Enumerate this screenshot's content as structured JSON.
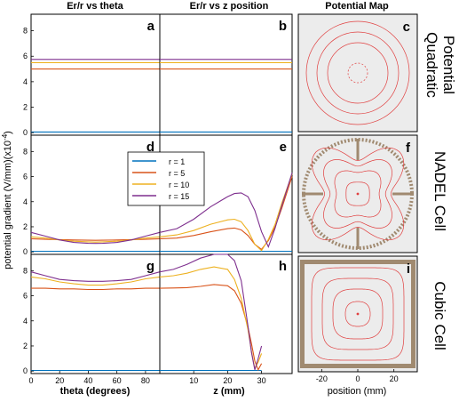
{
  "figure": {
    "ylabel": "potential gradient (V/mm)(x10",
    "ylabel_exp": "-4",
    "ylabel_tail": ")",
    "col_titles": [
      "Er/r vs theta",
      "Er/r vs z position",
      "Potential Map"
    ],
    "xlabel_theta": "theta (degrees)",
    "xlabel_z": "z (mm)",
    "xlabel_map": "position (mm)",
    "row_labels": [
      [
        "Quadratic",
        "Potential"
      ],
      [
        "NADEL Cell"
      ],
      [
        "Cubic Cell"
      ]
    ],
    "panel_letters": [
      "a",
      "b",
      "c",
      "d",
      "e",
      "f",
      "g",
      "h",
      "i"
    ],
    "colors": {
      "r1": "#0072bd",
      "r5": "#d95319",
      "r10": "#edb120",
      "r15": "#7e2f8e",
      "map_contour": "#e04040",
      "map_bg": "#ececec",
      "electrode": "#a08a70"
    },
    "legend": [
      "r = 1",
      "r = 5",
      "r = 10",
      "r = 15"
    ]
  },
  "chart_data": {
    "type": "line",
    "theta_axis": {
      "label": "theta (degrees)",
      "xlim": [
        0,
        90
      ],
      "ticks": [
        "0",
        "20",
        "40",
        "60",
        "80"
      ]
    },
    "z_axis": {
      "label": "z (mm)",
      "xlim": [
        0,
        39
      ],
      "ticks": [
        "0",
        "10",
        "20",
        "30"
      ]
    },
    "y_axis": {
      "ylim": [
        -0.2,
        9.3
      ],
      "ticks": [
        "0",
        "2",
        "4",
        "6",
        "8"
      ]
    },
    "map_axis": {
      "label": "position (mm)",
      "ticks": [
        "-20",
        "0",
        "20"
      ]
    },
    "rows": [
      {
        "name": "Quadratic Potential",
        "theta": {
          "x": [
            0,
            90
          ],
          "series": [
            {
              "name": "r = 1",
              "values": [
                0.05,
                0.05
              ]
            },
            {
              "name": "r = 5",
              "values": [
                5.0,
                5.0
              ]
            },
            {
              "name": "r = 10",
              "values": [
                5.5,
                5.5
              ]
            },
            {
              "name": "r = 15",
              "values": [
                5.75,
                5.75
              ]
            }
          ]
        },
        "z": {
          "x": [
            0,
            39
          ],
          "series": [
            {
              "name": "r = 1",
              "values": [
                0.05,
                0.05
              ]
            },
            {
              "name": "r = 5",
              "values": [
                5.0,
                5.0
              ]
            },
            {
              "name": "r = 10",
              "values": [
                5.5,
                5.5
              ]
            },
            {
              "name": "r = 15",
              "values": [
                5.75,
                5.75
              ]
            }
          ]
        }
      },
      {
        "name": "NADEL Cell",
        "theta": {
          "x": [
            0,
            10,
            20,
            30,
            40,
            45,
            50,
            60,
            70,
            80,
            90
          ],
          "series": [
            {
              "name": "r = 1",
              "values": [
                0.05,
                0.05,
                0.05,
                0.05,
                0.05,
                0.05,
                0.05,
                0.05,
                0.05,
                0.05,
                0.05
              ]
            },
            {
              "name": "r = 5",
              "values": [
                1.05,
                1.0,
                0.98,
                0.95,
                0.93,
                0.92,
                0.93,
                0.95,
                0.98,
                1.0,
                1.05
              ]
            },
            {
              "name": "r = 10",
              "values": [
                1.2,
                1.1,
                0.95,
                0.85,
                0.8,
                0.78,
                0.8,
                0.85,
                0.95,
                1.1,
                1.2
              ]
            },
            {
              "name": "r = 15",
              "values": [
                1.55,
                1.25,
                0.95,
                0.75,
                0.68,
                0.67,
                0.68,
                0.75,
                0.95,
                1.25,
                1.55
              ]
            }
          ]
        },
        "z": {
          "x": [
            0,
            5,
            10,
            15,
            20,
            22,
            24,
            26,
            28,
            30,
            32,
            34,
            36,
            39
          ],
          "series": [
            {
              "name": "r = 1",
              "values": [
                0.05,
                0.05,
                0.05,
                0.05,
                0.05,
                0.05,
                0.05,
                0.05,
                0.05,
                0.05,
                0.05,
                0.05,
                0.05,
                0.05
              ]
            },
            {
              "name": "r = 5",
              "values": [
                1.05,
                1.1,
                1.3,
                1.6,
                1.85,
                1.9,
                1.75,
                1.3,
                0.6,
                0.2,
                0.9,
                2.0,
                3.5,
                6.0
              ]
            },
            {
              "name": "r = 10",
              "values": [
                1.2,
                1.35,
                1.7,
                2.2,
                2.55,
                2.6,
                2.4,
                1.7,
                0.6,
                0.1,
                1.0,
                2.2,
                3.9,
                6.2
              ]
            },
            {
              "name": "r = 15",
              "values": [
                1.55,
                1.85,
                2.6,
                3.6,
                4.4,
                4.65,
                4.7,
                4.4,
                3.3,
                1.6,
                0.4,
                1.9,
                3.7,
                6.3
              ]
            }
          ]
        }
      },
      {
        "name": "Cubic Cell",
        "theta": {
          "x": [
            0,
            10,
            20,
            30,
            40,
            45,
            50,
            60,
            70,
            80,
            90
          ],
          "series": [
            {
              "name": "r = 1",
              "values": [
                0.05,
                0.05,
                0.05,
                0.05,
                0.05,
                0.05,
                0.05,
                0.05,
                0.05,
                0.05,
                0.05
              ]
            },
            {
              "name": "r = 5",
              "values": [
                6.6,
                6.6,
                6.55,
                6.55,
                6.5,
                6.5,
                6.5,
                6.55,
                6.55,
                6.6,
                6.6
              ]
            },
            {
              "name": "r = 10",
              "values": [
                7.5,
                7.35,
                7.1,
                6.95,
                6.85,
                6.85,
                6.85,
                6.95,
                7.1,
                7.35,
                7.5
              ]
            },
            {
              "name": "r = 15",
              "values": [
                7.9,
                7.6,
                7.3,
                7.2,
                7.15,
                7.15,
                7.15,
                7.2,
                7.3,
                7.6,
                7.9
              ]
            }
          ]
        },
        "z": {
          "x": [
            0,
            4,
            8,
            12,
            16,
            20,
            22,
            24,
            26,
            27,
            28,
            29,
            30
          ],
          "series": [
            {
              "name": "r = 1",
              "values": [
                0.05,
                0.05,
                0.05,
                0.05,
                0.05,
                0.05,
                0.05,
                0.05,
                0.05,
                0.05,
                0.05,
                0.05,
                0.05
              ]
            },
            {
              "name": "r = 5",
              "values": [
                6.6,
                6.62,
                6.65,
                6.75,
                6.9,
                6.8,
                6.4,
                5.4,
                3.5,
                2.2,
                0.8,
                0.1,
                0.6
              ]
            },
            {
              "name": "r = 10",
              "values": [
                7.5,
                7.6,
                7.8,
                8.1,
                8.3,
                8.1,
                7.3,
                5.8,
                3.3,
                1.6,
                0.2,
                0.7,
                1.4
              ]
            },
            {
              "name": "r = 15",
              "values": [
                7.9,
                8.1,
                8.5,
                9.0,
                9.3,
                9.3,
                8.8,
                7.2,
                3.6,
                1.5,
                0.1,
                1.0,
                2.0
              ]
            }
          ]
        }
      }
    ]
  }
}
